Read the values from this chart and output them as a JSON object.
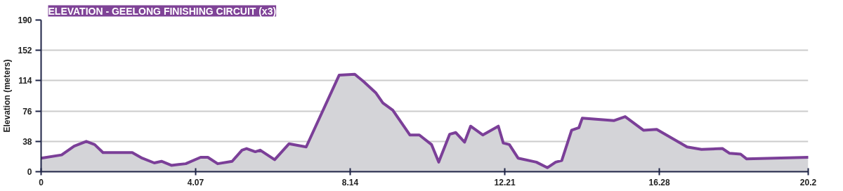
{
  "chart_data": {
    "type": "area",
    "title": "ELEVATION - GEELONG FINISHING CIRCUIT (x3)",
    "ylabel": "Elevation (meters)",
    "xlim": [
      0,
      20.2
    ],
    "xticks": [
      0,
      4.07,
      8.14,
      12.21,
      16.28,
      20.2
    ],
    "ylim": [
      0,
      190
    ],
    "yticks": [
      0,
      38,
      76,
      114,
      152,
      190
    ],
    "grid": "y",
    "series": [
      {
        "color": "#7b3f98",
        "x": [
          0,
          0.54,
          0.87,
          1.19,
          1.41,
          1.63,
          2.4,
          2.66,
          2.98,
          3.17,
          3.43,
          3.81,
          4.2,
          4.39,
          4.65,
          5.03,
          5.29,
          5.41,
          5.64,
          5.77,
          6.15,
          6.53,
          6.98,
          7.85,
          8.26,
          8.49,
          8.81,
          9.0,
          9.26,
          9.71,
          9.96,
          10.28,
          10.47,
          10.76,
          10.92,
          11.15,
          11.31,
          11.63,
          12.04,
          12.17,
          12.33,
          12.56,
          13.04,
          13.33,
          13.55,
          13.71,
          13.97,
          14.16,
          14.25,
          15.09,
          15.38,
          15.86,
          16.21,
          17.01,
          17.39,
          17.94,
          18.13,
          18.42,
          18.58,
          20.2
        ],
        "values": [
          17,
          21,
          32,
          38,
          34,
          24,
          24,
          17,
          11,
          13,
          8,
          10,
          18,
          18,
          10,
          13,
          27,
          29,
          25,
          27,
          15,
          35,
          31,
          121,
          122,
          113,
          99,
          86,
          77,
          46,
          46,
          34,
          12,
          47,
          49,
          37,
          57,
          46,
          57,
          36,
          34,
          17,
          12,
          5,
          12,
          14,
          52,
          55,
          67,
          64,
          69,
          52,
          53,
          31,
          28,
          29,
          23,
          22,
          16,
          18
        ]
      }
    ]
  }
}
